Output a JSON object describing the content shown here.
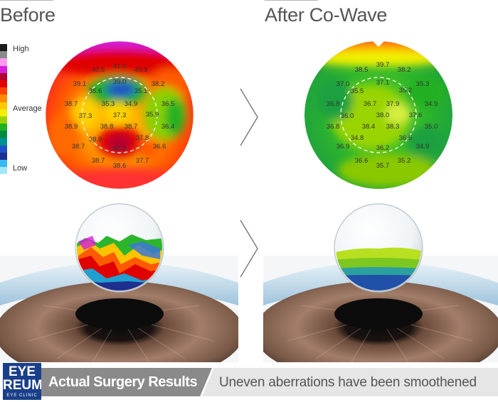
{
  "headings": {
    "before": "Before",
    "after": "After Co-Wave"
  },
  "scale": {
    "high": "High",
    "average": "Average",
    "low": "Low",
    "colors": [
      "#1a1a1a",
      "#8a8a8a",
      "#ff99ee",
      "#d51fd9",
      "#b00030",
      "#e00000",
      "#ff4000",
      "#ff8c00",
      "#ffc800",
      "#f0f000",
      "#9ad400",
      "#20b020",
      "#008a40",
      "#009090",
      "#2050c8",
      "#1e2f90",
      "#38b8f0",
      "#a0e8f8"
    ]
  },
  "before_map": {
    "readings": [
      "41.0",
      "40.5",
      "40.3",
      "39.1",
      "38.2",
      "39.0",
      "35.6",
      "35.1",
      "38.7",
      "35.3",
      "34.9",
      "36.5",
      "37.3",
      "37.3",
      "35.9",
      "38.9",
      "38.8",
      "38.7",
      "36.4",
      "38.9",
      "37.8",
      "38.7",
      "40.3",
      "36.6",
      "38.7",
      "38.6",
      "37.7"
    ]
  },
  "after_map": {
    "readings": [
      "39.7",
      "38.5",
      "38.2",
      "37.0",
      "37.1",
      "35.3",
      "35.5",
      "35.2",
      "36.8",
      "36.7",
      "37.9",
      "34.9",
      "36.0",
      "38.0",
      "37.6",
      "36.8",
      "38.4",
      "38.3",
      "35.0",
      "34.8",
      "36.5",
      "36.9",
      "36.2",
      "34.9",
      "36.6",
      "35.7",
      "35.2"
    ]
  },
  "footer": {
    "logo_line1": "EYE",
    "logo_line2": "REUM",
    "logo_line3": "EYE CLINIC",
    "title": "Actual Surgery Results",
    "caption": "Uneven aberrations have been smoothened"
  }
}
